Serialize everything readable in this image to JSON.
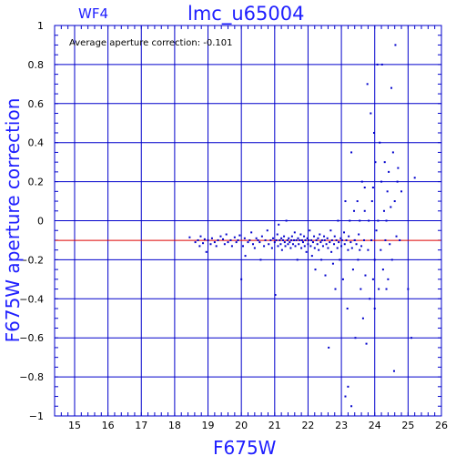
{
  "chart_data": {
    "type": "scatter",
    "panel_label": "WF4",
    "title": "lmc_u65004",
    "annotation": "Average aperture correction: -0.101",
    "xlabel": "F675W",
    "ylabel": "F675W aperture correction",
    "xlim": [
      14.4,
      26
    ],
    "ylim": [
      -1,
      1
    ],
    "xticks": [
      15,
      16,
      17,
      18,
      19,
      20,
      21,
      22,
      23,
      24,
      25,
      26
    ],
    "yticks": [
      -1,
      -0.8,
      -0.6,
      -0.4,
      -0.2,
      0,
      0.2,
      0.4,
      0.6,
      0.8,
      1
    ],
    "ytick_labels": [
      "−1",
      "−0.8",
      "−0.6",
      "−0.4",
      "−0.2",
      "0",
      "0.2",
      "0.4",
      "0.6",
      "0.8",
      "1"
    ],
    "grid": true,
    "reference_line": {
      "y": -0.101,
      "color": "#dd0000"
    },
    "colors": {
      "axis": "#0000cc",
      "points": "#0000cc",
      "labels": "#2020ff"
    },
    "points": [
      [
        18.45,
        -0.085
      ],
      [
        18.62,
        -0.11
      ],
      [
        18.7,
        -0.1
      ],
      [
        18.75,
        -0.13
      ],
      [
        18.78,
        -0.08
      ],
      [
        18.85,
        -0.115
      ],
      [
        18.9,
        -0.095
      ],
      [
        18.95,
        -0.16
      ],
      [
        19.0,
        -0.1
      ],
      [
        19.08,
        -0.12
      ],
      [
        19.12,
        -0.09
      ],
      [
        19.2,
        -0.11
      ],
      [
        19.25,
        -0.13
      ],
      [
        19.3,
        -0.1
      ],
      [
        19.38,
        -0.08
      ],
      [
        19.45,
        -0.095
      ],
      [
        19.5,
        -0.12
      ],
      [
        19.55,
        -0.07
      ],
      [
        19.6,
        -0.11
      ],
      [
        19.68,
        -0.1
      ],
      [
        19.72,
        -0.13
      ],
      [
        19.8,
        -0.085
      ],
      [
        19.85,
        -0.11
      ],
      [
        19.9,
        -0.1
      ],
      [
        19.95,
        -0.075
      ],
      [
        20.0,
        -0.3
      ],
      [
        20.05,
        -0.13
      ],
      [
        20.1,
        -0.09
      ],
      [
        20.12,
        -0.18
      ],
      [
        20.2,
        -0.11
      ],
      [
        20.25,
        -0.1
      ],
      [
        20.3,
        -0.06
      ],
      [
        20.35,
        -0.12
      ],
      [
        20.4,
        -0.14
      ],
      [
        20.45,
        -0.09
      ],
      [
        20.5,
        -0.1
      ],
      [
        20.55,
        -0.11
      ],
      [
        20.58,
        -0.2
      ],
      [
        20.62,
        -0.08
      ],
      [
        20.68,
        -0.13
      ],
      [
        20.72,
        -0.1
      ],
      [
        20.78,
        -0.05
      ],
      [
        20.82,
        -0.12
      ],
      [
        20.88,
        -0.1
      ],
      [
        20.92,
        -0.14
      ],
      [
        20.95,
        -0.09
      ],
      [
        21.0,
        -0.11
      ],
      [
        21.02,
        -0.38
      ],
      [
        21.05,
        -0.1
      ],
      [
        21.08,
        -0.07
      ],
      [
        21.1,
        -0.13
      ],
      [
        21.12,
        -0.02
      ],
      [
        21.15,
        -0.1
      ],
      [
        21.18,
        -0.12
      ],
      [
        21.2,
        -0.09
      ],
      [
        21.22,
        -0.15
      ],
      [
        21.25,
        -0.1
      ],
      [
        21.28,
        -0.08
      ],
      [
        21.3,
        -0.11
      ],
      [
        21.32,
        -0.13
      ],
      [
        21.35,
        -0.0
      ],
      [
        21.38,
        -0.1
      ],
      [
        21.4,
        -0.12
      ],
      [
        21.42,
        -0.09
      ],
      [
        21.45,
        -0.11
      ],
      [
        21.48,
        -0.14
      ],
      [
        21.5,
        -0.1
      ],
      [
        21.52,
        -0.08
      ],
      [
        21.55,
        -0.12
      ],
      [
        21.58,
        -0.1
      ],
      [
        21.6,
        -0.06
      ],
      [
        21.62,
        -0.13
      ],
      [
        21.65,
        -0.1
      ],
      [
        21.68,
        -0.2
      ],
      [
        21.7,
        -0.09
      ],
      [
        21.72,
        -0.12
      ],
      [
        21.75,
        -0.1
      ],
      [
        21.78,
        -0.07
      ],
      [
        21.8,
        -0.14
      ],
      [
        21.82,
        -0.1
      ],
      [
        21.85,
        -0.11
      ],
      [
        21.88,
        -0.08
      ],
      [
        21.9,
        -0.13
      ],
      [
        21.92,
        -0.1
      ],
      [
        21.95,
        -0.16
      ],
      [
        21.98,
        -0.09
      ],
      [
        22.0,
        -0.12
      ],
      [
        22.02,
        -0.1
      ],
      [
        22.05,
        -0.05
      ],
      [
        22.08,
        -0.13
      ],
      [
        22.1,
        -0.1
      ],
      [
        22.12,
        -0.18
      ],
      [
        22.15,
        -0.11
      ],
      [
        22.18,
        -0.08
      ],
      [
        22.2,
        -0.14
      ],
      [
        22.22,
        -0.25
      ],
      [
        22.25,
        -0.1
      ],
      [
        22.28,
        -0.12
      ],
      [
        22.3,
        -0.09
      ],
      [
        22.32,
        -0.15
      ],
      [
        22.35,
        -0.07
      ],
      [
        22.38,
        -0.11
      ],
      [
        22.4,
        -0.2
      ],
      [
        22.42,
        -0.1
      ],
      [
        22.45,
        -0.13
      ],
      [
        22.48,
        -0.08
      ],
      [
        22.5,
        -0.1
      ],
      [
        22.52,
        -0.28
      ],
      [
        22.55,
        -0.12
      ],
      [
        22.58,
        -0.09
      ],
      [
        22.6,
        -0.14
      ],
      [
        22.62,
        -0.65
      ],
      [
        22.65,
        -0.11
      ],
      [
        22.68,
        -0.05
      ],
      [
        22.7,
        -0.16
      ],
      [
        22.72,
        -0.1
      ],
      [
        22.75,
        -0.22
      ],
      [
        22.78,
        -0.12
      ],
      [
        22.8,
        -0.08
      ],
      [
        22.82,
        -0.35
      ],
      [
        22.85,
        -0.1
      ],
      [
        22.88,
        -0.14
      ],
      [
        22.9,
        0.0
      ],
      [
        22.92,
        -0.11
      ],
      [
        22.95,
        -0.2
      ],
      [
        22.98,
        -0.09
      ],
      [
        23.0,
        -0.13
      ],
      [
        23.02,
        -0.1
      ],
      [
        23.05,
        -0.3
      ],
      [
        23.08,
        -0.06
      ],
      [
        23.1,
        -0.12
      ],
      [
        23.12,
        0.1
      ],
      [
        23.15,
        -0.1
      ],
      [
        23.18,
        -0.45
      ],
      [
        23.2,
        -0.15
      ],
      [
        23.22,
        -0.08
      ],
      [
        23.25,
        0.0
      ],
      [
        23.28,
        -0.11
      ],
      [
        23.3,
        0.35
      ],
      [
        23.32,
        -0.14
      ],
      [
        23.35,
        -0.25
      ],
      [
        23.38,
        0.05
      ],
      [
        23.4,
        -0.1
      ],
      [
        23.42,
        -0.6
      ],
      [
        23.45,
        -0.12
      ],
      [
        23.48,
        0.1
      ],
      [
        23.5,
        -0.2
      ],
      [
        23.52,
        -0.07
      ],
      [
        23.55,
        0.0
      ],
      [
        23.58,
        -0.35
      ],
      [
        23.6,
        -0.13
      ],
      [
        23.62,
        0.2
      ],
      [
        23.65,
        -0.5
      ],
      [
        23.68,
        -0.1
      ],
      [
        23.7,
        0.05
      ],
      [
        23.72,
        -0.28
      ],
      [
        23.75,
        -0.63
      ],
      [
        23.78,
        0.7
      ],
      [
        23.8,
        -0.15
      ],
      [
        23.82,
        0.0
      ],
      [
        23.85,
        -0.4
      ],
      [
        23.88,
        0.55
      ],
      [
        23.9,
        -0.1
      ],
      [
        23.92,
        0.1
      ],
      [
        23.95,
        -0.3
      ],
      [
        23.98,
        0.45
      ],
      [
        24.0,
        -0.2
      ],
      [
        24.02,
        0.3
      ],
      [
        24.05,
        -0.05
      ],
      [
        24.08,
        0.8
      ],
      [
        24.1,
        0.0
      ],
      [
        24.12,
        -0.35
      ],
      [
        24.15,
        0.4
      ],
      [
        24.18,
        -0.15
      ],
      [
        24.2,
        0.2
      ],
      [
        24.22,
        0.8
      ],
      [
        24.25,
        -0.25
      ],
      [
        24.28,
        0.05
      ],
      [
        24.3,
        0.3
      ],
      [
        24.32,
        -0.1
      ],
      [
        24.35,
        0.0
      ],
      [
        24.38,
        0.15
      ],
      [
        24.4,
        -0.3
      ],
      [
        24.42,
        0.25
      ],
      [
        24.45,
        -0.12
      ],
      [
        24.48,
        0.07
      ],
      [
        24.5,
        0.68
      ],
      [
        24.52,
        -0.2
      ],
      [
        24.55,
        0.35
      ],
      [
        24.58,
        -0.77
      ],
      [
        24.6,
        0.1
      ],
      [
        24.62,
        0.9
      ],
      [
        24.65,
        -0.08
      ],
      [
        24.68,
        0.2
      ],
      [
        24.7,
        0.27
      ],
      [
        24.75,
        -0.1
      ],
      [
        24.8,
        0.15
      ],
      [
        25.0,
        -0.35
      ],
      [
        25.1,
        -0.6
      ],
      [
        25.2,
        0.22
      ],
      [
        23.3,
        -0.95
      ],
      [
        23.12,
        -0.9
      ],
      [
        23.2,
        -0.85
      ],
      [
        23.4,
        -0.1
      ],
      [
        23.55,
        -0.15
      ],
      [
        23.7,
        0.17
      ],
      [
        23.95,
        0.17
      ],
      [
        24.0,
        -0.45
      ],
      [
        24.35,
        -0.35
      ]
    ]
  }
}
